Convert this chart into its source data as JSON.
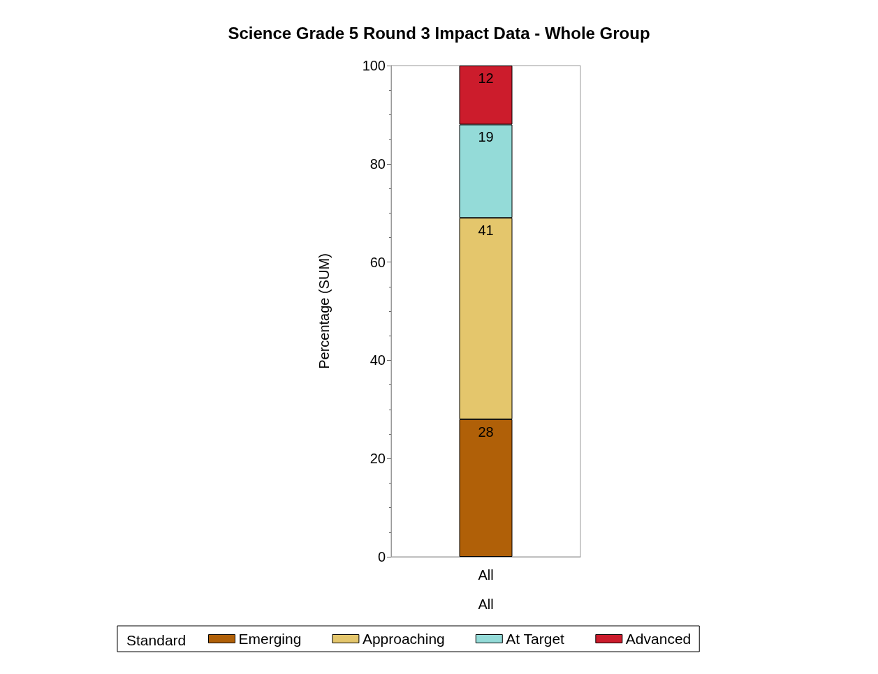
{
  "chart_data": {
    "type": "bar",
    "title": "Science Grade 5 Round 3 Impact Data - Whole Group",
    "xlabel": "All",
    "ylabel": "Percentage (SUM)",
    "legend_title": "Standard",
    "categories": [
      "All"
    ],
    "series": [
      {
        "name": "Emerging",
        "color": "#b06008",
        "values": [
          28
        ]
      },
      {
        "name": "Approaching",
        "color": "#e4c66c",
        "values": [
          41
        ]
      },
      {
        "name": "At Target",
        "color": "#94dbd8",
        "values": [
          19
        ]
      },
      {
        "name": "Advanced",
        "color": "#cc1c2c",
        "values": [
          12
        ]
      }
    ],
    "stacked": true,
    "data_labels": true,
    "legend": "bottom",
    "ylim": [
      0,
      100
    ],
    "yticks": [
      0,
      20,
      40,
      60,
      80,
      100
    ]
  }
}
